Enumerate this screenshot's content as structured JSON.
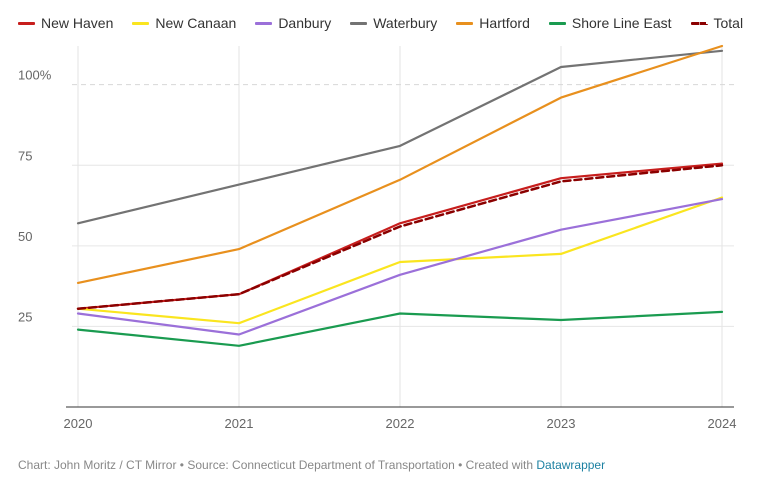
{
  "chart_data": {
    "type": "line",
    "title": "",
    "xlabel": "",
    "ylabel": "",
    "x": [
      "2020",
      "2021",
      "2022",
      "2023",
      "2024"
    ],
    "y_ticks": [
      {
        "value": 25,
        "label": "25"
      },
      {
        "value": 50,
        "label": "50"
      },
      {
        "value": 75,
        "label": "75"
      },
      {
        "value": 100,
        "label": "100%"
      }
    ],
    "ylim": [
      0,
      112
    ],
    "grid": true,
    "legend_position": "top",
    "series": [
      {
        "name": "New Haven",
        "color": "#c71e1d",
        "dashed": false,
        "values": [
          30.5,
          35,
          57,
          71,
          75.5
        ]
      },
      {
        "name": "New Canaan",
        "color": "#fae51f",
        "dashed": false,
        "values": [
          30.5,
          26,
          45,
          47.5,
          65
        ]
      },
      {
        "name": "Danbury",
        "color": "#9b70d9",
        "dashed": false,
        "values": [
          29,
          22.5,
          41,
          55,
          64.5
        ]
      },
      {
        "name": "Waterbury",
        "color": "#737373",
        "dashed": false,
        "values": [
          57,
          69,
          81,
          105.5,
          110.5
        ]
      },
      {
        "name": "Hartford",
        "color": "#e8901e",
        "dashed": false,
        "values": [
          38.5,
          49,
          70.5,
          96,
          112
        ]
      },
      {
        "name": "Shore Line East",
        "color": "#1a9b50",
        "dashed": false,
        "values": [
          24,
          19,
          29,
          27,
          29.5
        ]
      },
      {
        "name": "Total",
        "color": "#8b0000",
        "dashed": true,
        "values": [
          30.5,
          35,
          56,
          70,
          75
        ]
      }
    ]
  },
  "footer": {
    "text": "Chart: John Moritz / CT Mirror • Source: Connecticut Department of Transportation • Created with ",
    "link": "Datawrapper"
  }
}
